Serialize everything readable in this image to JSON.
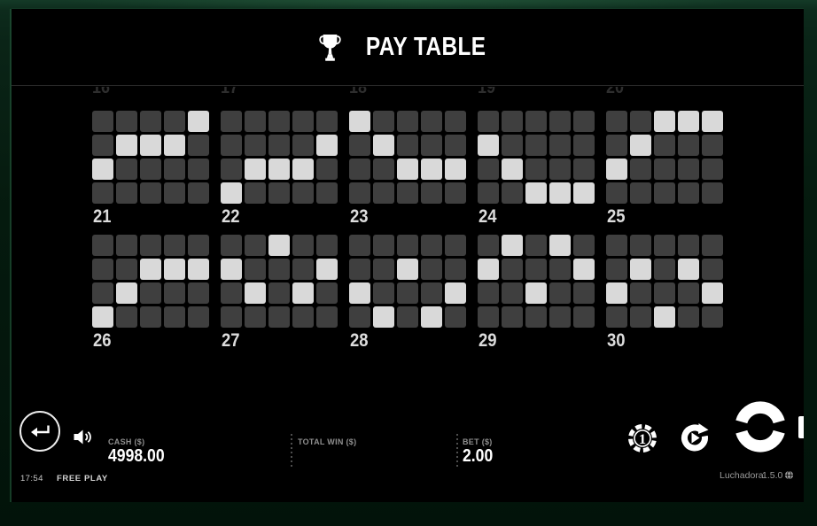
{
  "header": {
    "title": "PAY TABLE"
  },
  "paytable": {
    "grid": {
      "columns": 5,
      "rows": 4
    },
    "previous_row_labels": [
      "16",
      "17",
      "18",
      "19",
      "20"
    ],
    "paylines": [
      {
        "number": "21",
        "cells": [
          2,
          1,
          1,
          1,
          0
        ]
      },
      {
        "number": "22",
        "cells": [
          3,
          2,
          2,
          2,
          1
        ]
      },
      {
        "number": "23",
        "cells": [
          0,
          1,
          2,
          2,
          2
        ]
      },
      {
        "number": "24",
        "cells": [
          1,
          2,
          3,
          3,
          3
        ]
      },
      {
        "number": "25",
        "cells": [
          2,
          1,
          0,
          0,
          0
        ]
      },
      {
        "number": "26",
        "cells": [
          3,
          2,
          1,
          1,
          1
        ]
      },
      {
        "number": "27",
        "cells": [
          1,
          2,
          0,
          2,
          1
        ]
      },
      {
        "number": "28",
        "cells": [
          2,
          3,
          1,
          3,
          2
        ]
      },
      {
        "number": "29",
        "cells": [
          1,
          0,
          2,
          0,
          1
        ]
      },
      {
        "number": "30",
        "cells": [
          2,
          1,
          3,
          1,
          2
        ]
      }
    ]
  },
  "footer": {
    "time": "17:54",
    "mode": "FREE PLAY",
    "cash_label": "CASH ($)",
    "cash_value": "4998.00",
    "total_win_label": "TOTAL WIN ($)",
    "bet_label": "BET ($)",
    "bet_value": "2.00",
    "chip_value": "1",
    "game_name": "Luchadora",
    "version": "1.5.0"
  },
  "icons": [
    "trophy-icon",
    "return-icon",
    "sound-icon",
    "chip-icon",
    "autoplay-icon",
    "spin-icon",
    "globe-icon"
  ],
  "colors": {
    "frame_green": "#0d2b1c",
    "cell_off": "#3f3f3f",
    "cell_on": "#d9d9d9",
    "label_dim": "#8f8f8f",
    "text_white": "#ffffff"
  }
}
